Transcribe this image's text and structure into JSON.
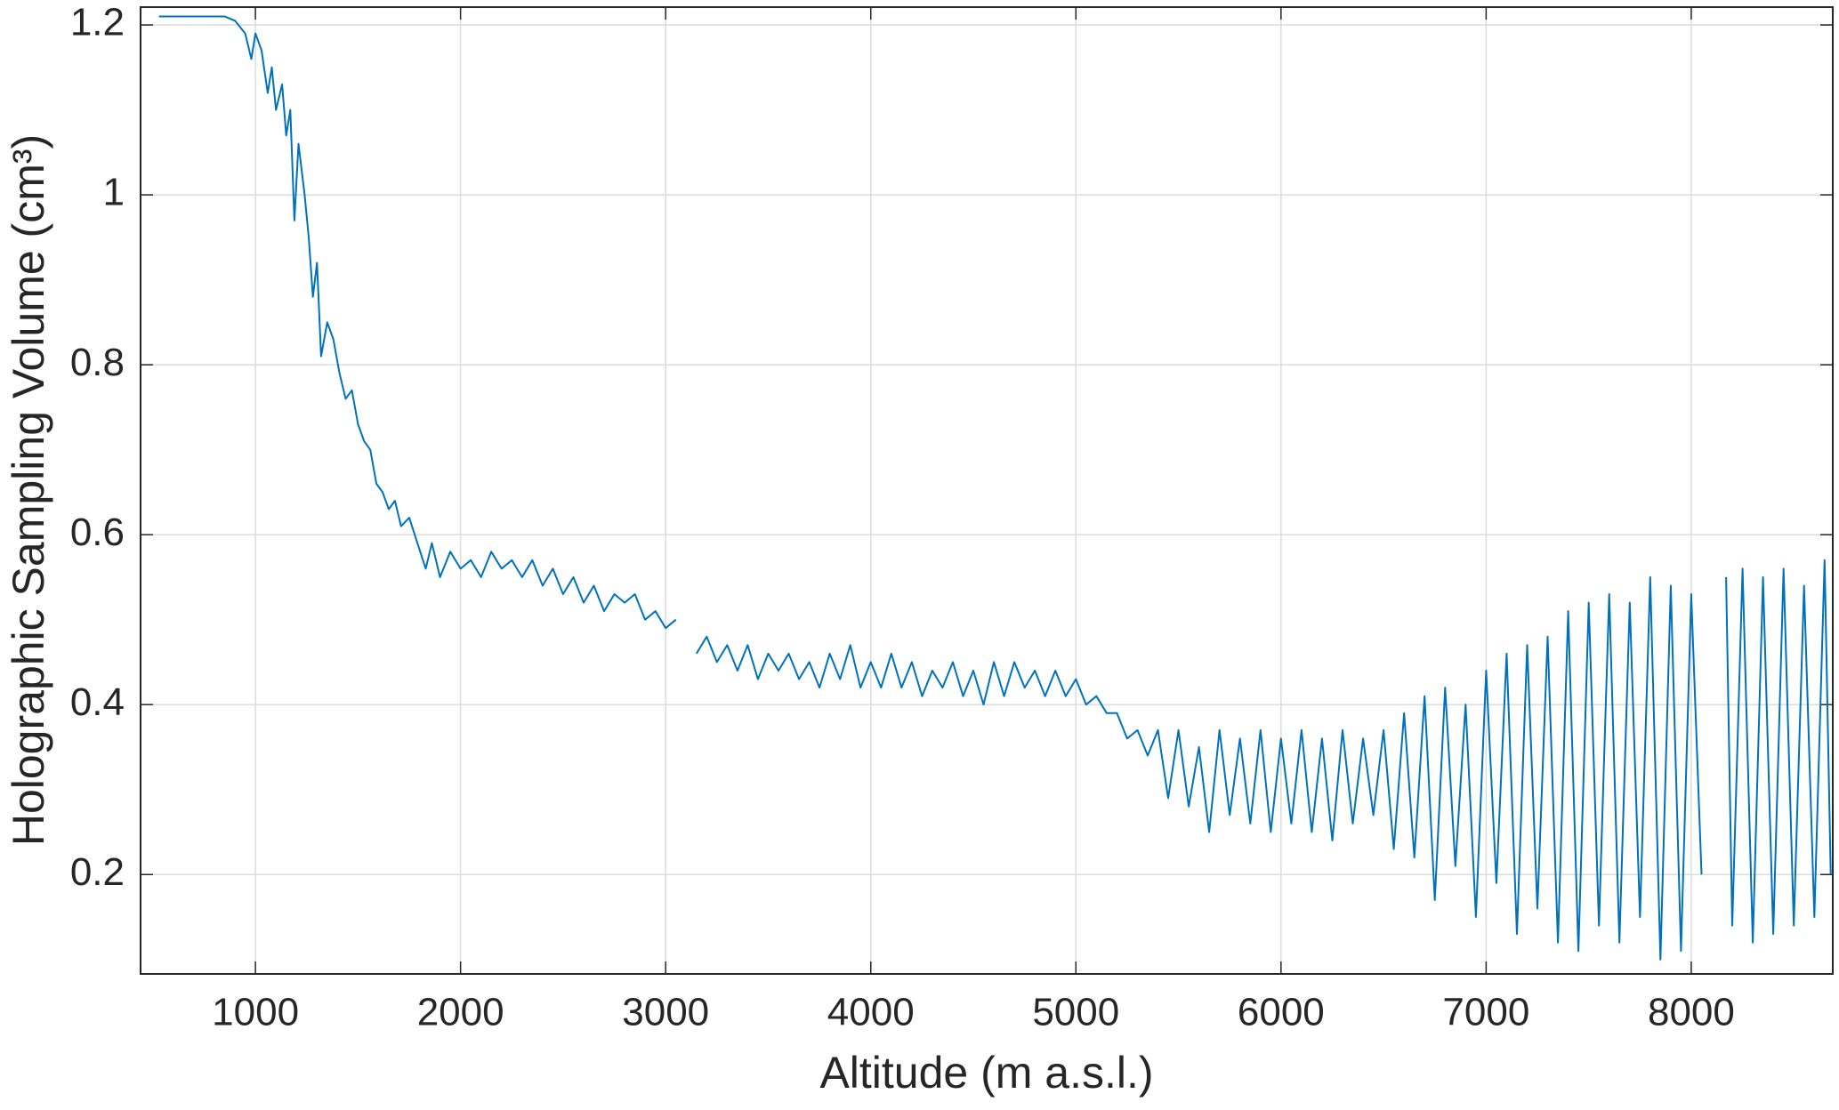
{
  "chart_data": {
    "type": "line",
    "xlabel": "Altitude (m a.s.l.)",
    "ylabel": "Holographic Sampling Volume (cm³)",
    "xlim": [
      440,
      8690
    ],
    "ylim": [
      0.083,
      1.221
    ],
    "xticks": [
      1000,
      2000,
      3000,
      4000,
      5000,
      6000,
      7000,
      8000
    ],
    "yticks": [
      0.2,
      0.4,
      0.6,
      0.8,
      1,
      1.2
    ],
    "grid": true,
    "x": [
      530,
      600,
      700,
      800,
      850,
      900,
      950,
      980,
      1000,
      1030,
      1060,
      1080,
      1100,
      1130,
      1150,
      1170,
      1190,
      1210,
      1240,
      1260,
      1280,
      1300,
      1320,
      1350,
      1380,
      1410,
      1440,
      1470,
      1500,
      1530,
      1560,
      1590,
      1620,
      1650,
      1680,
      1710,
      1750,
      1790,
      1830,
      1860,
      1900,
      1950,
      2000,
      2050,
      2100,
      2150,
      2200,
      2250,
      2300,
      2350,
      2400,
      2450,
      2500,
      2550,
      2600,
      2650,
      2700,
      2750,
      2800,
      2850,
      2900,
      2950,
      3000,
      3050,
      3100,
      3150,
      3200,
      3250,
      3300,
      3350,
      3400,
      3450,
      3500,
      3550,
      3600,
      3650,
      3700,
      3750,
      3800,
      3850,
      3900,
      3950,
      4000,
      4050,
      4100,
      4150,
      4200,
      4250,
      4300,
      4350,
      4400,
      4450,
      4500,
      4550,
      4600,
      4650,
      4700,
      4750,
      4800,
      4850,
      4900,
      4950,
      5000,
      5050,
      5100,
      5150,
      5200,
      5250,
      5300,
      5350,
      5400,
      5450,
      5500,
      5550,
      5600,
      5650,
      5700,
      5750,
      5800,
      5850,
      5900,
      5950,
      6000,
      6050,
      6100,
      6150,
      6200,
      6250,
      6300,
      6350,
      6400,
      6450,
      6500,
      6550,
      6600,
      6650,
      6700,
      6750,
      6800,
      6850,
      6900,
      6950,
      7000,
      7050,
      7100,
      7150,
      7200,
      7250,
      7300,
      7350,
      7400,
      7450,
      7500,
      7550,
      7600,
      7650,
      7700,
      7750,
      7800,
      7850,
      7900,
      7950,
      8000,
      8050,
      8100,
      8170,
      8200,
      8250,
      8300,
      8350,
      8400,
      8450,
      8500,
      8550,
      8600,
      8650,
      8680
    ],
    "series": [
      {
        "color": "#0072bd",
        "values": [
          1.21,
          1.21,
          1.21,
          1.21,
          1.21,
          1.205,
          1.19,
          1.16,
          1.19,
          1.17,
          1.12,
          1.15,
          1.1,
          1.13,
          1.07,
          1.1,
          0.97,
          1.06,
          1.0,
          0.95,
          0.88,
          0.92,
          0.81,
          0.85,
          0.83,
          0.79,
          0.76,
          0.77,
          0.73,
          0.71,
          0.7,
          0.66,
          0.65,
          0.63,
          0.64,
          0.61,
          0.62,
          0.59,
          0.56,
          0.59,
          0.55,
          0.58,
          0.56,
          0.57,
          0.55,
          0.58,
          0.56,
          0.57,
          0.55,
          0.57,
          0.54,
          0.56,
          0.53,
          0.55,
          0.52,
          0.54,
          0.51,
          0.53,
          0.52,
          0.53,
          0.5,
          0.51,
          0.49,
          0.5,
          null,
          0.46,
          0.48,
          0.45,
          0.47,
          0.44,
          0.47,
          0.43,
          0.46,
          0.44,
          0.46,
          0.43,
          0.45,
          0.42,
          0.46,
          0.43,
          0.47,
          0.42,
          0.45,
          0.42,
          0.46,
          0.42,
          0.45,
          0.41,
          0.44,
          0.42,
          0.45,
          0.41,
          0.44,
          0.4,
          0.45,
          0.41,
          0.45,
          0.42,
          0.44,
          0.41,
          0.44,
          0.41,
          0.43,
          0.4,
          0.41,
          0.39,
          0.39,
          0.36,
          0.37,
          0.34,
          0.37,
          0.29,
          0.37,
          0.28,
          0.35,
          0.25,
          0.37,
          0.27,
          0.36,
          0.26,
          0.37,
          0.25,
          0.36,
          0.26,
          0.37,
          0.25,
          0.36,
          0.24,
          0.37,
          0.26,
          0.36,
          0.27,
          0.37,
          0.23,
          0.39,
          0.22,
          0.41,
          0.17,
          0.42,
          0.21,
          0.4,
          0.15,
          0.44,
          0.19,
          0.46,
          0.13,
          0.47,
          0.16,
          0.48,
          0.12,
          0.51,
          0.11,
          0.52,
          0.14,
          0.53,
          0.12,
          0.52,
          0.15,
          0.55,
          0.1,
          0.54,
          0.11,
          0.53,
          0.2,
          null,
          0.55,
          0.14,
          0.56,
          0.12,
          0.55,
          0.13,
          0.56,
          0.14,
          0.54,
          0.15,
          0.57,
          0.2
        ]
      }
    ]
  }
}
